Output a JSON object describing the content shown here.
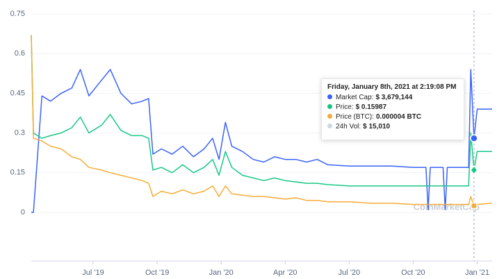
{
  "chart_data": {
    "type": "line",
    "x": [
      3.1,
      3.2,
      3.6,
      4.0,
      4.5,
      5.0,
      5.4,
      5.8,
      6.4,
      6.8,
      7.3,
      7.8,
      8.3,
      8.6,
      8.8,
      9.2,
      9.7,
      10.2,
      10.7,
      11.2,
      11.6,
      11.9,
      12.2,
      12.5,
      13.0,
      13.5,
      14.0,
      14.5,
      15.0,
      15.5,
      16.0,
      16.5,
      17.0,
      18.0,
      19.0,
      20.0,
      21.0,
      21.6,
      21.7,
      21.8,
      22.4,
      22.5,
      22.6,
      23.6,
      23.7,
      23.85,
      24.0,
      24.7
    ],
    "series": [
      {
        "color": "#3861fb",
        "values": [
          0,
          0,
          0.44,
          0.42,
          0.45,
          0.47,
          0.54,
          0.44,
          0.5,
          0.54,
          0.45,
          0.41,
          0.42,
          0.43,
          0.22,
          0.24,
          0.22,
          0.25,
          0.21,
          0.24,
          0.28,
          0.2,
          0.34,
          0.25,
          0.23,
          0.2,
          0.19,
          0.21,
          0.2,
          0.2,
          0.19,
          0.2,
          0.18,
          0.175,
          0.175,
          0.175,
          0.17,
          0.17,
          0.01,
          0.17,
          0.17,
          0.01,
          0.17,
          0.17,
          0.54,
          0.28,
          0.39,
          0.39
        ]
      },
      {
        "color": "#16c784",
        "values": [
          0.67,
          0.3,
          0.28,
          0.29,
          0.3,
          0.32,
          0.36,
          0.3,
          0.33,
          0.37,
          0.31,
          0.29,
          0.29,
          0.28,
          0.16,
          0.17,
          0.15,
          0.18,
          0.15,
          0.17,
          0.2,
          0.14,
          0.23,
          0.17,
          0.14,
          0.13,
          0.12,
          0.13,
          0.12,
          0.115,
          0.11,
          0.11,
          0.105,
          0.1,
          0.1,
          0.1,
          0.1,
          0.1,
          0.1,
          0.1,
          0.1,
          0.1,
          0.1,
          0.1,
          0.3,
          0.16,
          0.23,
          0.23
        ]
      },
      {
        "color": "#f5ac37",
        "values": [
          0.67,
          0.28,
          0.27,
          0.25,
          0.24,
          0.21,
          0.2,
          0.17,
          0.16,
          0.15,
          0.14,
          0.13,
          0.12,
          0.11,
          0.06,
          0.08,
          0.07,
          0.085,
          0.07,
          0.08,
          0.1,
          0.06,
          0.1,
          0.07,
          0.065,
          0.06,
          0.06,
          0.055,
          0.05,
          0.055,
          0.045,
          0.045,
          0.04,
          0.04,
          0.035,
          0.035,
          0.03,
          0.03,
          0.03,
          0.03,
          0.03,
          0.03,
          0.03,
          0.03,
          0.06,
          0.025,
          0.03,
          0.035
        ]
      }
    ],
    "xlim": [
      3.1,
      24.7
    ],
    "xticks": [
      {
        "value": 6,
        "label": "Jul '19"
      },
      {
        "value": 9,
        "label": "Oct '19"
      },
      {
        "value": 12,
        "label": "Jan '20"
      },
      {
        "value": 15,
        "label": "Apr '20"
      },
      {
        "value": 18,
        "label": "Jul '20"
      },
      {
        "value": 21,
        "label": "Oct '20"
      },
      {
        "value": 24,
        "label": "Jan '21"
      }
    ],
    "ylim": [
      0,
      0.75
    ],
    "yticks": [
      0,
      0.15,
      0.3,
      0.45,
      0.6,
      0.75
    ],
    "grid": true,
    "watermark": "CoinMarketCap",
    "tooltip": {
      "title": "Friday, January 8th, 2021 at 2:19:08 PM",
      "items": [
        {
          "color": "#3861fb",
          "label": "Market Cap:",
          "value": "$ 3,679,144"
        },
        {
          "color": "#16c784",
          "label": "Price:",
          "value": "$ 0.15987"
        },
        {
          "color": "#f5ac37",
          "label": "Price (BTC):",
          "value": "0.000004 BTC"
        },
        {
          "color": "#cfd6e4",
          "label": "24h Vol:",
          "value": "$ 15,010"
        }
      ]
    }
  }
}
